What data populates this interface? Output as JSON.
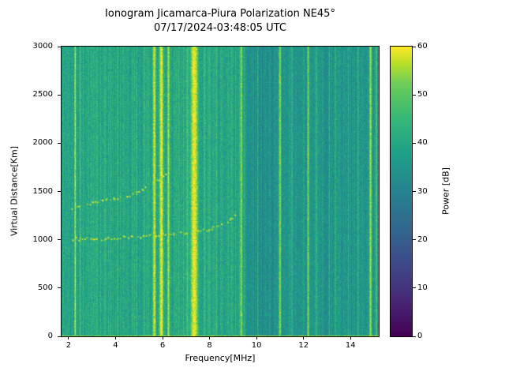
{
  "figure": {
    "title_line1": "Ionogram Jicamarca-Piura Polarization NE45°",
    "title_line2": "07/17/2024-03:48:05 UTC",
    "xlabel": "Frequency[MHz]",
    "ylabel": "Virtual Distance[Km]",
    "colorbar_label": "Power [dB]"
  },
  "chart_data": {
    "type": "heatmap",
    "title": "Ionogram Jicamarca-Piura Polarization NE45°",
    "subtitle": "07/17/2024-03:48:05 UTC",
    "xlabel": "Frequency[MHz]",
    "ylabel": "Virtual Distance[Km]",
    "xlim": [
      1.7,
      15.2
    ],
    "ylim": [
      0,
      3000
    ],
    "x_ticks": [
      2,
      4,
      6,
      8,
      10,
      12,
      14
    ],
    "y_ticks": [
      0,
      500,
      1000,
      1500,
      2000,
      2500,
      3000
    ],
    "grid": false,
    "colorbar": {
      "label": "Power [dB]",
      "min": 0,
      "max": 60,
      "ticks": [
        0,
        10,
        20,
        30,
        40,
        50,
        60
      ],
      "colormap": "viridis",
      "position": "right"
    },
    "background": {
      "bands": [
        {
          "freq_range": [
            1.7,
            9.55
          ],
          "mean_db": 40
        },
        {
          "freq_range": [
            9.55,
            10.7
          ],
          "mean_db": 33
        },
        {
          "freq_range": [
            10.7,
            15.2
          ],
          "mean_db": 35.5
        }
      ],
      "pixel_noise_db": 5,
      "column_noise_db": 3.5,
      "bottom_edge_db": 54
    },
    "rfi_bands": [
      {
        "freq": 2.28,
        "sigma": 0.05,
        "power": 58
      },
      {
        "freq": 2.5,
        "sigma": 0.04,
        "power": 50
      },
      {
        "freq": 2.95,
        "sigma": 0.04,
        "power": 46
      },
      {
        "freq": 3.2,
        "sigma": 0.04,
        "power": 44
      },
      {
        "freq": 3.7,
        "sigma": 0.04,
        "power": 44
      },
      {
        "freq": 4.1,
        "sigma": 0.04,
        "power": 45
      },
      {
        "freq": 4.55,
        "sigma": 0.04,
        "power": 44
      },
      {
        "freq": 4.9,
        "sigma": 0.04,
        "power": 46
      },
      {
        "freq": 5.2,
        "sigma": 0.04,
        "power": 45
      },
      {
        "freq": 5.4,
        "sigma": 0.04,
        "power": 46
      },
      {
        "freq": 5.65,
        "sigma": 0.1,
        "power": 58
      },
      {
        "freq": 5.95,
        "sigma": 0.12,
        "power": 60
      },
      {
        "freq": 6.25,
        "sigma": 0.08,
        "power": 56
      },
      {
        "freq": 6.5,
        "sigma": 0.04,
        "power": 46
      },
      {
        "freq": 6.7,
        "sigma": 0.04,
        "power": 48
      },
      {
        "freq": 6.9,
        "sigma": 0.04,
        "power": 47
      },
      {
        "freq": 7.05,
        "sigma": 0.05,
        "power": 50
      },
      {
        "freq": 7.35,
        "sigma": 0.22,
        "power": 60
      },
      {
        "freq": 7.8,
        "sigma": 0.05,
        "power": 48
      },
      {
        "freq": 8.0,
        "sigma": 0.04,
        "power": 46
      },
      {
        "freq": 8.3,
        "sigma": 0.06,
        "power": 46
      },
      {
        "freq": 8.55,
        "sigma": 0.04,
        "power": 45
      },
      {
        "freq": 8.8,
        "sigma": 0.04,
        "power": 44
      },
      {
        "freq": 9.1,
        "sigma": 0.04,
        "power": 45
      },
      {
        "freq": 9.35,
        "sigma": 0.08,
        "power": 54
      },
      {
        "freq": 10.05,
        "sigma": 0.04,
        "power": 44
      },
      {
        "freq": 11.0,
        "sigma": 0.07,
        "power": 54
      },
      {
        "freq": 11.5,
        "sigma": 0.04,
        "power": 46
      },
      {
        "freq": 12.2,
        "sigma": 0.07,
        "power": 53
      },
      {
        "freq": 12.55,
        "sigma": 0.04,
        "power": 47
      },
      {
        "freq": 13.1,
        "sigma": 0.04,
        "power": 44
      },
      {
        "freq": 13.35,
        "sigma": 0.04,
        "power": 46
      },
      {
        "freq": 13.9,
        "sigma": 0.04,
        "power": 44
      },
      {
        "freq": 14.3,
        "sigma": 0.04,
        "power": 45
      },
      {
        "freq": 14.85,
        "sigma": 0.08,
        "power": 55
      },
      {
        "freq": 15.1,
        "sigma": 0.05,
        "power": 50
      }
    ],
    "traces": [
      {
        "name": "F-region echo (one hop)",
        "points": [
          [
            2.1,
            1020
          ],
          [
            2.6,
            1010
          ],
          [
            3.2,
            1015
          ],
          [
            3.8,
            1020
          ],
          [
            4.4,
            1030
          ],
          [
            5.0,
            1040
          ],
          [
            5.6,
            1050
          ],
          [
            6.2,
            1060
          ],
          [
            6.8,
            1075
          ],
          [
            7.4,
            1090
          ],
          [
            7.9,
            1110
          ],
          [
            8.4,
            1150
          ],
          [
            8.8,
            1210
          ],
          [
            9.1,
            1280
          ]
        ]
      },
      {
        "name": "F-region echo (oblique/second trace)",
        "points": [
          [
            2.1,
            1340
          ],
          [
            2.6,
            1360
          ],
          [
            3.2,
            1390
          ],
          [
            3.8,
            1420
          ],
          [
            4.4,
            1460
          ],
          [
            5.0,
            1510
          ],
          [
            5.5,
            1570
          ],
          [
            5.9,
            1640
          ],
          [
            6.2,
            1720
          ]
        ]
      }
    ]
  }
}
